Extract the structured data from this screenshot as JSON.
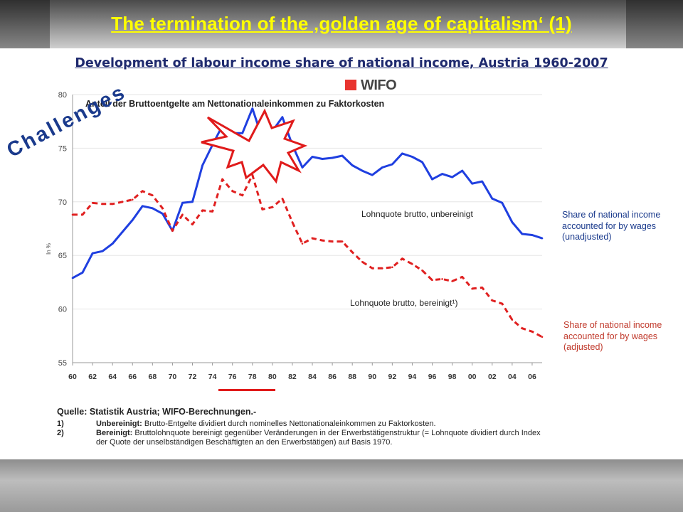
{
  "slide": {
    "title": "The termination of the ‚golden age of capitalism‘ (1)",
    "subtitle": "Development of labour income share of national income, Austria 1960-2007",
    "challenges_text": "Challenges",
    "brand_text": "WIFO",
    "note_unadjusted": "Share of national income accounted for by wages (unadjusted)",
    "note_adjusted": "Share of national income accounted for by wages (adjusted)"
  },
  "source": {
    "header": "Quelle: Statistik Austria; WIFO-Berechnungen.-",
    "rows": [
      {
        "num": "1)",
        "term": "Unbereinigt:",
        "text": "Brutto-Entgelte dividiert durch nominelles Nettonationaleinkommen zu Faktorkosten."
      },
      {
        "num": "2)",
        "term": "Bereinigt:",
        "text": "Bruttolohnquote bereinigt gegenüber Veränderungen in der Erwerbstätigenstruktur (= Lohnquote dividiert durch Index der Quote der unselbständigen Beschäftigten an den Erwerbstätigen) auf Basis 1970."
      }
    ]
  },
  "chart_data": {
    "type": "line",
    "title": "Anteil der Bruttoentgelte am Nettonationaleinkommen zu Faktorkosten",
    "ylabel": "In %",
    "xlabel": "",
    "ylim": [
      55,
      80
    ],
    "yticks": [
      55,
      60,
      65,
      70,
      75,
      80
    ],
    "xticks": [
      "60",
      "62",
      "64",
      "66",
      "68",
      "70",
      "72",
      "74",
      "76",
      "78",
      "80",
      "82",
      "84",
      "86",
      "88",
      "90",
      "92",
      "94",
      "96",
      "98",
      "00",
      "02",
      "04",
      "06"
    ],
    "x": [
      1960,
      1961,
      1962,
      1963,
      1964,
      1965,
      1966,
      1967,
      1968,
      1969,
      1970,
      1971,
      1972,
      1973,
      1974,
      1975,
      1976,
      1977,
      1978,
      1979,
      1980,
      1981,
      1982,
      1983,
      1984,
      1985,
      1986,
      1987,
      1988,
      1989,
      1990,
      1991,
      1992,
      1993,
      1994,
      1995,
      1996,
      1997,
      1998,
      1999,
      2000,
      2001,
      2002,
      2003,
      2004,
      2005,
      2006,
      2007
    ],
    "series": [
      {
        "name": "Lohnquote brutto, unbereinigt",
        "color": "#1f3fe0",
        "style": "solid",
        "values": [
          62.9,
          63.4,
          65.2,
          65.4,
          66.1,
          67.2,
          68.3,
          69.6,
          69.4,
          68.9,
          67.3,
          69.9,
          70.0,
          73.4,
          75.3,
          77.1,
          76.4,
          76.4,
          78.7,
          75.9,
          76.6,
          77.9,
          75.3,
          73.2,
          74.2,
          74.0,
          74.1,
          74.3,
          73.4,
          72.9,
          72.5,
          73.2,
          73.5,
          74.5,
          74.2,
          73.7,
          72.1,
          72.6,
          72.3,
          72.9,
          71.7,
          71.9,
          70.3,
          69.9,
          68.1,
          67.0,
          66.9,
          66.6
        ]
      },
      {
        "name": "Lohnquote brutto, bereinigt",
        "color": "#e02020",
        "style": "dashed",
        "values": [
          68.8,
          68.8,
          69.9,
          69.8,
          69.8,
          70.0,
          70.2,
          71.0,
          70.6,
          69.4,
          67.3,
          68.8,
          67.9,
          69.2,
          69.1,
          72.1,
          71.0,
          70.6,
          72.5,
          69.3,
          69.5,
          70.3,
          68.1,
          66.1,
          66.6,
          66.4,
          66.3,
          66.3,
          65.3,
          64.4,
          63.8,
          63.8,
          63.9,
          64.7,
          64.2,
          63.6,
          62.7,
          62.8,
          62.6,
          63.0,
          61.9,
          62.0,
          60.8,
          60.5,
          59.0,
          58.2,
          57.9,
          57.4
        ]
      }
    ],
    "annotations": [
      "Lohnquote brutto, unbereinigt",
      "Lohnquote brutto, bereinigt¹)"
    ]
  }
}
